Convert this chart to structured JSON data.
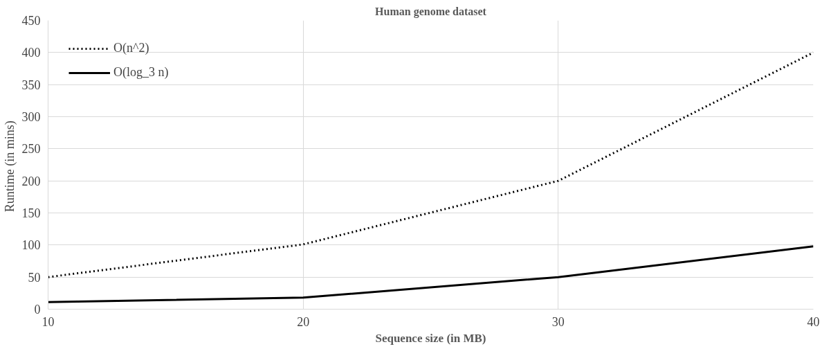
{
  "chart_data": {
    "type": "line",
    "title": "Human genome dataset",
    "xlabel": "Sequence size (in MB)",
    "ylabel": "Runtime  (in mins)",
    "x": [
      10,
      20,
      30,
      40
    ],
    "series": [
      {
        "name": "O(n^2)",
        "color": "#000000",
        "line_style": "dotted",
        "values": [
          50,
          101,
          200,
          400
        ]
      },
      {
        "name": "O(log_3 n)",
        "color": "#000000",
        "line_style": "solid",
        "values": [
          11,
          18,
          50,
          98
        ]
      }
    ],
    "xlim": [
      10,
      40
    ],
    "xticks": [
      10,
      20,
      30,
      40
    ],
    "ylim": [
      0,
      450
    ],
    "yticks": [
      0,
      50,
      100,
      150,
      200,
      250,
      300,
      350,
      400,
      450
    ],
    "grid": true,
    "legend": "top left",
    "marker": "none"
  }
}
